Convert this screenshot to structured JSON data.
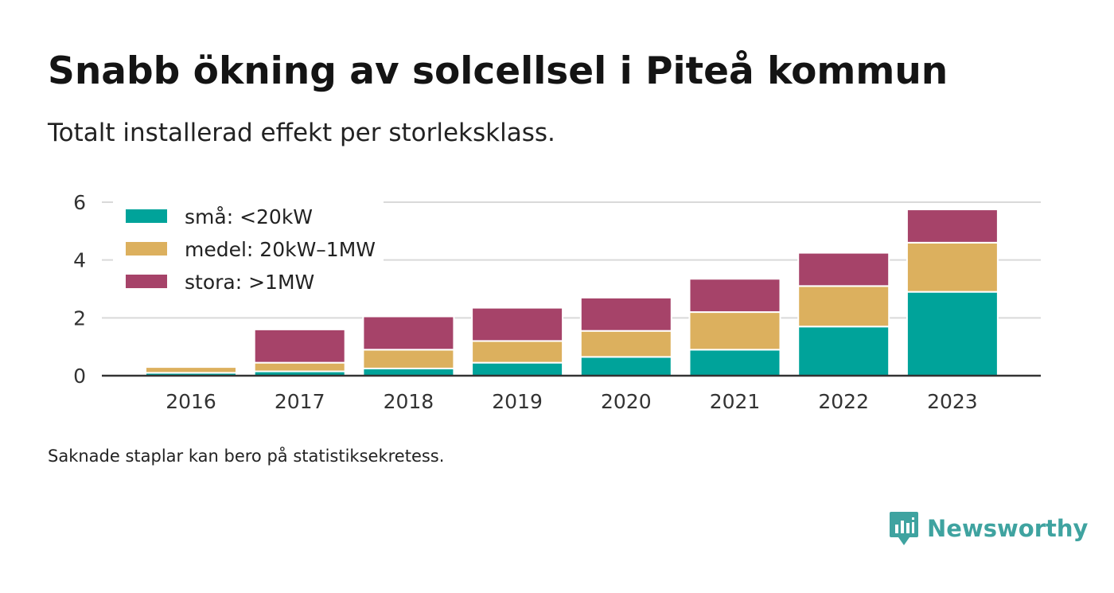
{
  "title": "Snabb ökning av solcellsel i Piteå kommun",
  "subtitle": "Totalt installerad effekt per storleksklass.",
  "footnote": "Saknade staplar kan bero på statistiksekretess.",
  "brand": {
    "name": "Newsworthy",
    "icon": "newsworthy-logo-icon",
    "color": "#3fa3a0"
  },
  "chart_data": {
    "type": "bar",
    "stacked": true,
    "categories": [
      "2016",
      "2017",
      "2018",
      "2019",
      "2020",
      "2021",
      "2022",
      "2023"
    ],
    "series": [
      {
        "name": "små: <20kW",
        "color": "#00a39a",
        "values": [
          0.1,
          0.15,
          0.25,
          0.45,
          0.65,
          0.9,
          1.7,
          2.9
        ]
      },
      {
        "name": "medel: 20kW–1MW",
        "color": "#dcb05e",
        "values": [
          0.2,
          0.3,
          0.65,
          0.75,
          0.9,
          1.3,
          1.4,
          1.7
        ]
      },
      {
        "name": "stora: >1MW",
        "color": "#a64369",
        "values": [
          0,
          1.15,
          1.15,
          1.15,
          1.15,
          1.15,
          1.15,
          1.15
        ]
      }
    ],
    "ylim": [
      0,
      6
    ],
    "yticks": [
      0,
      2,
      4,
      6
    ],
    "grid": true,
    "legend": "top-left"
  }
}
